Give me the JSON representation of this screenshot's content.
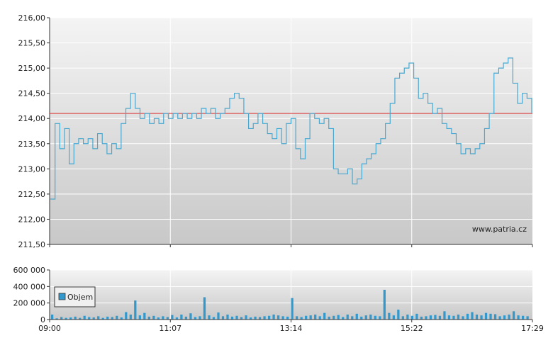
{
  "chart_data": [
    {
      "type": "line",
      "title": "",
      "xlabel": "",
      "ylabel": "",
      "ylim": [
        211.5,
        216.0
      ],
      "y_tick_labels": [
        "216,00",
        "215,50",
        "215,00",
        "214,50",
        "214,00",
        "213,50",
        "213,00",
        "212,50",
        "212,00",
        "211,50"
      ],
      "y_ticks": [
        216.0,
        215.5,
        215.0,
        214.5,
        214.0,
        213.5,
        213.0,
        212.5,
        212.0,
        211.5
      ],
      "x_tick_labels": [
        "09:00",
        "11:07",
        "13:14",
        "15:22",
        "17:29"
      ],
      "reference_line": {
        "value": 214.1,
        "color": "#dd3333"
      },
      "series": [
        {
          "color": "#4aa8d0",
          "x": [
            "09:00",
            "09:05",
            "09:10",
            "09:15",
            "09:20",
            "09:25",
            "09:30",
            "09:35",
            "09:40",
            "09:45",
            "09:50",
            "09:55",
            "10:00",
            "10:05",
            "10:10",
            "10:15",
            "10:20",
            "10:25",
            "10:30",
            "10:35",
            "10:40",
            "10:45",
            "10:50",
            "10:55",
            "11:00",
            "11:05",
            "11:10",
            "11:15",
            "11:20",
            "11:25",
            "11:30",
            "11:35",
            "11:40",
            "11:45",
            "11:50",
            "11:55",
            "12:00",
            "12:05",
            "12:10",
            "12:15",
            "12:20",
            "12:25",
            "12:30",
            "12:35",
            "12:40",
            "12:45",
            "12:50",
            "12:55",
            "13:00",
            "13:05",
            "13:10",
            "13:15",
            "13:20",
            "13:25",
            "13:30",
            "13:35",
            "13:40",
            "13:45",
            "13:50",
            "13:55",
            "14:00",
            "14:05",
            "14:10",
            "14:15",
            "14:20",
            "14:25",
            "14:30",
            "14:35",
            "14:40",
            "14:45",
            "14:50",
            "14:55",
            "15:00",
            "15:05",
            "15:10",
            "15:15",
            "15:20",
            "15:25",
            "15:30",
            "15:35",
            "15:40",
            "15:45",
            "15:50",
            "15:55",
            "16:00",
            "16:05",
            "16:10",
            "16:15",
            "16:20",
            "16:25",
            "16:30",
            "16:35",
            "16:40",
            "16:45",
            "16:50",
            "16:55",
            "17:00",
            "17:05",
            "17:10",
            "17:15",
            "17:20",
            "17:25",
            "17:29"
          ],
          "values": [
            212.4,
            213.9,
            213.4,
            213.8,
            213.1,
            213.5,
            213.6,
            213.5,
            213.6,
            213.4,
            213.7,
            213.5,
            213.3,
            213.5,
            213.4,
            213.9,
            214.2,
            214.5,
            214.2,
            214.0,
            214.1,
            213.9,
            214.0,
            213.9,
            214.1,
            214.0,
            214.1,
            214.0,
            214.1,
            214.0,
            214.1,
            214.0,
            214.2,
            214.1,
            214.2,
            214.0,
            214.1,
            214.2,
            214.4,
            214.5,
            214.4,
            214.1,
            213.8,
            213.9,
            214.1,
            213.9,
            213.7,
            213.6,
            213.8,
            213.5,
            213.9,
            214.0,
            213.4,
            213.2,
            213.6,
            214.1,
            214.0,
            213.9,
            214.0,
            213.8,
            213.0,
            212.9,
            212.9,
            213.0,
            212.7,
            212.8,
            213.1,
            213.2,
            213.3,
            213.5,
            213.6,
            213.9,
            214.3,
            214.8,
            214.9,
            215.0,
            215.1,
            214.8,
            214.4,
            214.5,
            214.3,
            214.1,
            214.2,
            213.9,
            213.8,
            213.7,
            213.5,
            213.3,
            213.4,
            213.3,
            213.4,
            213.5,
            213.8,
            214.1,
            214.9,
            215.0,
            215.1,
            215.2,
            214.7,
            214.3,
            214.5,
            214.4,
            214.1
          ]
        }
      ]
    },
    {
      "type": "bar",
      "ylim": [
        0,
        600000
      ],
      "y_tick_labels": [
        "600 000",
        "400 000",
        "200 000",
        "0"
      ],
      "y_ticks": [
        600000,
        400000,
        200000,
        0
      ],
      "x_tick_labels": [
        "09:00",
        "11:07",
        "13:14",
        "15:22",
        "17:29"
      ],
      "legend": {
        "label": "Objem",
        "placement": "top-left"
      },
      "series": [
        {
          "name": "Objem",
          "color": "#3399cc",
          "values": [
            60000,
            15000,
            30000,
            20000,
            25000,
            35000,
            20000,
            45000,
            30000,
            25000,
            40000,
            20000,
            35000,
            30000,
            45000,
            25000,
            90000,
            60000,
            230000,
            50000,
            80000,
            35000,
            45000,
            25000,
            40000,
            30000,
            55000,
            25000,
            60000,
            35000,
            75000,
            30000,
            40000,
            270000,
            50000,
            30000,
            85000,
            40000,
            60000,
            35000,
            45000,
            30000,
            50000,
            25000,
            35000,
            30000,
            40000,
            45000,
            60000,
            50000,
            40000,
            35000,
            260000,
            40000,
            30000,
            45000,
            50000,
            60000,
            40000,
            80000,
            35000,
            45000,
            55000,
            30000,
            60000,
            40000,
            70000,
            35000,
            50000,
            60000,
            45000,
            40000,
            360000,
            80000,
            50000,
            120000,
            40000,
            60000,
            45000,
            70000,
            35000,
            40000,
            50000,
            55000,
            45000,
            100000,
            50000,
            45000,
            60000,
            40000,
            70000,
            90000,
            60000,
            50000,
            80000,
            70000,
            65000,
            40000,
            50000,
            60000,
            100000,
            50000,
            45000,
            40000
          ]
        }
      ]
    }
  ],
  "watermark": "www.patria.cz"
}
